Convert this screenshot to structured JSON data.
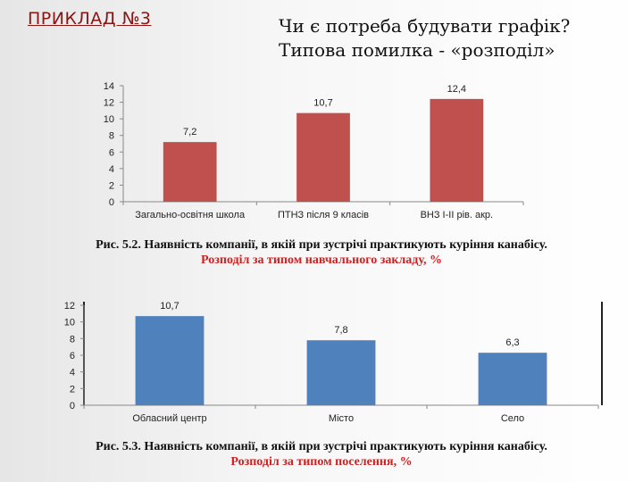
{
  "header": {
    "badge": "ПРИКЛАД №3",
    "title_line1": "Чи є потреба будувати графік?",
    "title_line2": "Типова помилка - «розподіл»"
  },
  "charts": {
    "chart1": {
      "caption_line1": "Рис. 5.2. Наявність компанії, в якій при зустрічі практикують куріння канабісу.",
      "caption_line2": "Розподіл за типом навчального закладу, %"
    },
    "chart2": {
      "caption_line1": "Рис. 5.3. Наявність компанії, в якій при зустрічі практикують куріння канабісу.",
      "caption_line2": "Розподіл за типом поселення, %"
    }
  },
  "chart_data": [
    {
      "type": "bar",
      "categories": [
        "Загально-освітня школа",
        "ПТНЗ після 9 класів",
        "ВНЗ І-ІІ рів. акр."
      ],
      "values": [
        7.2,
        10.7,
        12.4
      ],
      "value_labels": [
        "7,2",
        "10,7",
        "12,4"
      ],
      "ylim": [
        0,
        14
      ],
      "yticks": [
        0,
        2,
        4,
        6,
        8,
        10,
        12,
        14
      ],
      "grid": false,
      "color": "#c0504d"
    },
    {
      "type": "bar",
      "categories": [
        "Обласний центр",
        "Місто",
        "Село"
      ],
      "values": [
        10.7,
        7.8,
        6.3
      ],
      "value_labels": [
        "10,7",
        "7,8",
        "6,3"
      ],
      "ylim": [
        0,
        12
      ],
      "yticks": [
        0,
        2,
        4,
        6,
        8,
        10,
        12
      ],
      "grid": false,
      "color": "#4f81bd"
    }
  ]
}
